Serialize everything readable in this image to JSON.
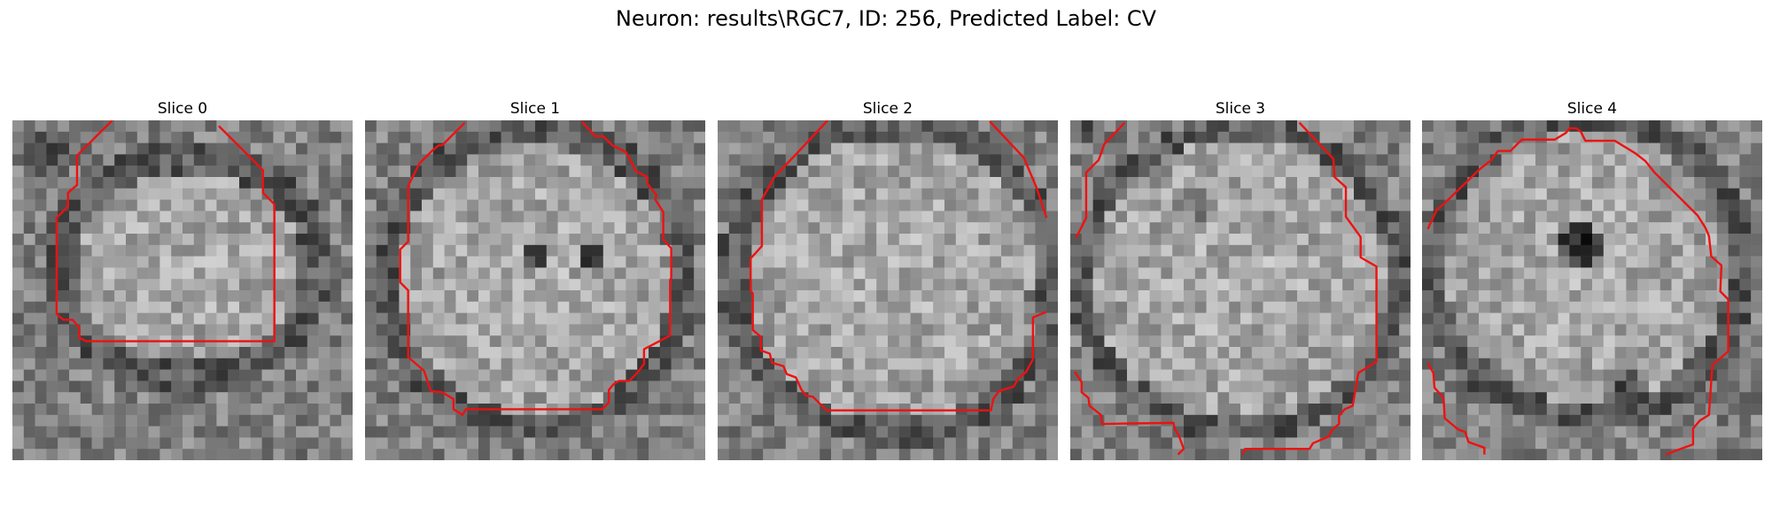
{
  "figure": {
    "title": "Neuron: results\\RGC7, ID: 256, Predicted Label: CV"
  },
  "contour_color": "#ee1111",
  "slices": [
    {
      "title": "Slice 0",
      "grid_size": 30,
      "contours": [
        [
          [
            8.8,
            0
          ],
          [
            5.7,
            3.1
          ],
          [
            5.7,
            5.7
          ],
          [
            4.9,
            6.4
          ],
          [
            4.9,
            7.6
          ],
          [
            3.9,
            8.6
          ],
          [
            3.9,
            17.1
          ],
          [
            4.5,
            17.6
          ],
          [
            5.3,
            17.6
          ],
          [
            5.9,
            18.3
          ],
          [
            5.9,
            19.2
          ],
          [
            6.5,
            19.5
          ],
          [
            23.1,
            19.5
          ],
          [
            23.1,
            7.4
          ],
          [
            22.1,
            6.4
          ],
          [
            22.1,
            4.4
          ],
          [
            18.2,
            0.5
          ]
        ]
      ]
    },
    {
      "title": "Slice 1",
      "grid_size": 30,
      "contours": [
        [
          [
            8.8,
            0.2
          ],
          [
            6.8,
            2.2
          ],
          [
            6.5,
            2.2
          ],
          [
            5.9,
            2.7
          ],
          [
            4.8,
            3.8
          ],
          [
            3.8,
            5.8
          ],
          [
            3.8,
            10.7
          ],
          [
            3.1,
            11.4
          ],
          [
            3.1,
            14.3
          ],
          [
            3.8,
            15.0
          ],
          [
            3.8,
            20.9
          ],
          [
            5.2,
            22.1
          ],
          [
            5.8,
            23.9
          ],
          [
            6.8,
            24.0
          ],
          [
            7.8,
            24.6
          ],
          [
            7.8,
            25.5
          ],
          [
            8.6,
            26.0
          ],
          [
            8.9,
            25.5
          ],
          [
            20.9,
            25.5
          ],
          [
            21.5,
            24.9
          ],
          [
            21.5,
            23.8
          ],
          [
            21.9,
            23.3
          ],
          [
            22.4,
            23.0
          ],
          [
            23.3,
            23.0
          ],
          [
            24.0,
            22.3
          ],
          [
            24.6,
            21.5
          ],
          [
            24.6,
            20.2
          ],
          [
            26.9,
            19.0
          ],
          [
            26.9,
            14.1
          ],
          [
            27.0,
            13.9
          ],
          [
            27.0,
            11.3
          ],
          [
            26.3,
            10.5
          ],
          [
            26.3,
            8.1
          ],
          [
            25.6,
            7.0
          ],
          [
            25.7,
            6.6
          ],
          [
            24.9,
            5.6
          ],
          [
            24.9,
            5.0
          ],
          [
            23.9,
            4.5
          ],
          [
            23.0,
            2.8
          ],
          [
            21.8,
            2.2
          ],
          [
            21.0,
            1.4
          ],
          [
            20.3,
            1.4
          ],
          [
            19.1,
            0.1
          ]
        ]
      ]
    },
    {
      "title": "Slice 2",
      "grid_size": 30,
      "contours": [
        [
          [
            9.7,
            0
          ],
          [
            7.0,
            2.9
          ],
          [
            5.0,
            5.0
          ],
          [
            3.9,
            7.0
          ],
          [
            3.9,
            11.1
          ],
          [
            2.9,
            12.2
          ],
          [
            2.9,
            15.0
          ],
          [
            3.1,
            15.3
          ],
          [
            3.1,
            18.5
          ],
          [
            3.8,
            19.1
          ],
          [
            3.8,
            20.3
          ],
          [
            4.6,
            20.6
          ],
          [
            4.8,
            21.4
          ],
          [
            5.8,
            21.7
          ],
          [
            6.1,
            22.4
          ],
          [
            6.9,
            22.7
          ],
          [
            7.4,
            23.8
          ],
          [
            7.8,
            24.3
          ],
          [
            8.4,
            24.4
          ],
          [
            9.6,
            25.6
          ],
          [
            24.1,
            25.6
          ],
          [
            24.3,
            24.6
          ],
          [
            24.8,
            23.9
          ],
          [
            26.1,
            23.5
          ],
          [
            26.5,
            22.8
          ],
          [
            27.2,
            22.2
          ],
          [
            27.8,
            21.1
          ],
          [
            27.8,
            17.4
          ],
          [
            29.0,
            16.9
          ]
        ],
        [
          [
            24.0,
            0.1
          ],
          [
            27.0,
            3.3
          ],
          [
            28.1,
            5.9
          ],
          [
            29.0,
            8.6
          ]
        ]
      ]
    },
    {
      "title": "Slice 3",
      "grid_size": 30,
      "contours": [
        [
          [
            4.8,
            0.2
          ],
          [
            3.0,
            2.1
          ],
          [
            2.5,
            3.5
          ],
          [
            1.4,
            4.6
          ],
          [
            1.4,
            8.6
          ],
          [
            0.5,
            10.4
          ]
        ],
        [
          [
            20.2,
            0.2
          ],
          [
            23.2,
            3.4
          ],
          [
            23.3,
            5.0
          ],
          [
            24.3,
            5.9
          ],
          [
            24.3,
            8.5
          ],
          [
            25.6,
            10.3
          ],
          [
            25.6,
            12.1
          ],
          [
            27.0,
            12.9
          ],
          [
            27.0,
            21.3
          ],
          [
            25.4,
            22.3
          ],
          [
            24.9,
            25.2
          ],
          [
            24.2,
            25.5
          ],
          [
            23.7,
            26.1
          ],
          [
            23.7,
            26.8
          ],
          [
            23.1,
            27.3
          ],
          [
            22.8,
            27.9
          ],
          [
            21.4,
            28.5
          ],
          [
            21.1,
            29.0
          ],
          [
            15.4,
            29.0
          ],
          [
            15.2,
            29.5
          ]
        ],
        [
          [
            0.4,
            22.2
          ],
          [
            1.0,
            23.1
          ],
          [
            1.0,
            24.0
          ],
          [
            1.6,
            24.5
          ],
          [
            1.7,
            25.2
          ],
          [
            2.7,
            26.0
          ],
          [
            2.8,
            26.8
          ],
          [
            9.1,
            26.7
          ],
          [
            9.2,
            27.2
          ],
          [
            9.6,
            27.9
          ],
          [
            10.0,
            29.0
          ],
          [
            9.5,
            29.5
          ]
        ]
      ]
    },
    {
      "title": "Slice 4",
      "grid_size": 30,
      "contours": [
        [
          [
            0.5,
            9.6
          ],
          [
            1.3,
            7.9
          ],
          [
            2.0,
            7.3
          ],
          [
            5.1,
            4.3
          ],
          [
            6.1,
            3.5
          ],
          [
            6.7,
            2.7
          ],
          [
            7.8,
            2.7
          ],
          [
            8.8,
            1.7
          ],
          [
            11.7,
            1.7
          ],
          [
            12.7,
            1.1
          ],
          [
            13.0,
            0.7
          ],
          [
            13.6,
            0.7
          ],
          [
            14.0,
            1.0
          ],
          [
            14.4,
            1.8
          ],
          [
            17.0,
            1.8
          ],
          [
            18.8,
            2.9
          ],
          [
            19.7,
            3.6
          ],
          [
            20.5,
            4.6
          ],
          [
            24.3,
            8.4
          ],
          [
            25.0,
            9.5
          ],
          [
            25.3,
            10.2
          ],
          [
            25.5,
            12.0
          ],
          [
            26.4,
            12.8
          ],
          [
            26.3,
            15.1
          ],
          [
            27.0,
            15.8
          ],
          [
            27.0,
            20.4
          ],
          [
            25.6,
            21.6
          ],
          [
            25.3,
            26.0
          ],
          [
            24.5,
            26.5
          ],
          [
            23.9,
            27.2
          ],
          [
            23.9,
            28.6
          ],
          [
            22.8,
            29.0
          ],
          [
            21.5,
            29.5
          ]
        ],
        [
          [
            0.5,
            21.4
          ],
          [
            1.0,
            22.3
          ],
          [
            1.1,
            23.6
          ],
          [
            1.9,
            24.5
          ],
          [
            2.0,
            26.3
          ],
          [
            3.2,
            27.3
          ],
          [
            3.8,
            27.5
          ],
          [
            4.1,
            28.4
          ],
          [
            5.5,
            28.9
          ],
          [
            5.5,
            29.5
          ]
        ]
      ]
    }
  ]
}
